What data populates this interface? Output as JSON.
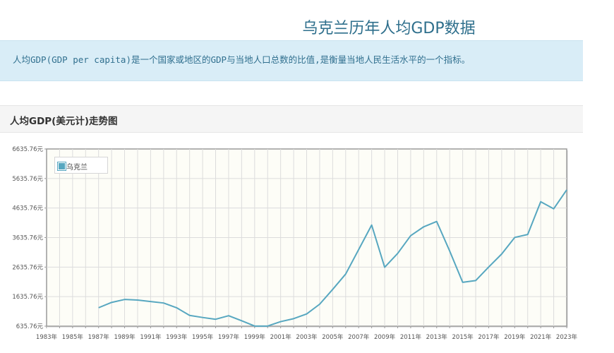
{
  "page": {
    "title": "乌克兰历年人均GDP数据",
    "intro": "人均GDP(GDP per capita)是一个国家或地区的GDP与当地人口总数的比值,是衡量当地人民生活水平的一个指标。",
    "section_title": "人均GDP(美元计)走势图"
  },
  "colors": {
    "line": "#57a7c0",
    "plot_bg": "#fdfdf7",
    "grid": "#dcdcdc",
    "title": "#2e6f8c"
  },
  "chart_data": {
    "type": "line",
    "title": "",
    "xlabel": "",
    "ylabel": "",
    "x_tick_labels": [
      "1983年",
      "1985年",
      "1987年",
      "1989年",
      "1991年",
      "1993年",
      "1995年",
      "1997年",
      "1999年",
      "2001年",
      "2003年",
      "2005年",
      "2007年",
      "2009年",
      "2011年",
      "2013年",
      "2015年",
      "2017年",
      "2019年",
      "2021年",
      "2023年"
    ],
    "y_tick_labels": [
      "6635.76元",
      "5635.76元",
      "4635.76元",
      "3635.76元",
      "2635.76元",
      "1635.76元",
      "635.76元"
    ],
    "xlim": [
      1983,
      2023
    ],
    "ylim": [
      635.76,
      6635.76
    ],
    "grid": true,
    "legend_position": "top-left",
    "series": [
      {
        "name": "乌克兰",
        "x": [
          1987,
          1988,
          1989,
          1990,
          1991,
          1992,
          1993,
          1994,
          1995,
          1996,
          1997,
          1998,
          1999,
          2000,
          2001,
          2002,
          2003,
          2004,
          2005,
          2006,
          2007,
          2008,
          2009,
          2010,
          2011,
          2012,
          2013,
          2014,
          2015,
          2016,
          2017,
          2018,
          2019,
          2020,
          2021,
          2022,
          2023
        ],
        "y": [
          1260,
          1440,
          1540,
          1520,
          1470,
          1420,
          1260,
          1000,
          930,
          870,
          990,
          820,
          640,
          640,
          790,
          890,
          1050,
          1380,
          1880,
          2400,
          3230,
          4060,
          2630,
          3100,
          3700,
          4000,
          4180,
          3180,
          2120,
          2180,
          2640,
          3080,
          3640,
          3740,
          4850,
          4610,
          5250
        ]
      }
    ]
  }
}
